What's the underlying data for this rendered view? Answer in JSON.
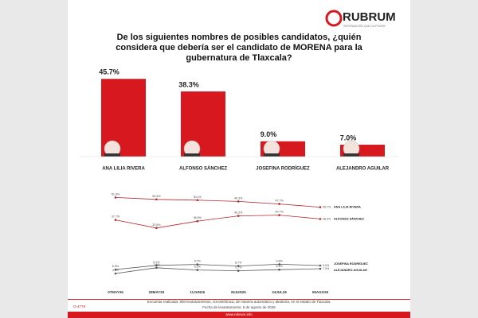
{
  "header": {
    "logo": "RUBRUM",
    "tagline": "INFORMACIÓN QUE DA PODER"
  },
  "chart_data": [
    {
      "type": "bar",
      "title": "De los siguientes nombres de posibles candidatos, ¿quién considera que debería ser el candidato de MORENA para la gubernatura de Tlaxcala?",
      "categories": [
        "ANA LILIA RIVERA",
        "ALFONSO SÁNCHEZ",
        "JOSEFINA RODRÍGUEZ",
        "ALEJANDRO AGUILAR"
      ],
      "values": [
        45.7,
        38.3,
        9.0,
        7.0
      ],
      "value_labels": [
        "45.7%",
        "38.3%",
        "9.0%",
        "7.0%"
      ],
      "color": "#d7191f",
      "ylim": [
        0,
        50
      ]
    },
    {
      "type": "line",
      "x": [
        "07MAY26",
        "28MAY26",
        "11JUN26",
        "25JUN26",
        "24JUL26",
        "06AGO26"
      ],
      "ylim": [
        0,
        56
      ],
      "series": [
        {
          "name": "ANA LILIA RIVERA",
          "color": "#b3262c",
          "values": [
            51.8,
            50.6,
            50.1,
            49.3,
            47.7,
            45.7
          ],
          "value_labels": [
            "51.8%",
            "50.6%",
            "50.1%",
            "49.3%",
            "47.7%",
            "45.7%"
          ]
        },
        {
          "name": "ALFONSO SÁNCHEZ",
          "color": "#b3262c",
          "values": [
            37.7,
            32.6,
            36.9,
            40.2,
            40.7,
            38.3
          ],
          "value_labels": [
            "37.7%",
            "32.6%",
            "36.9%",
            "40.2%",
            "40.7%",
            "38.3%"
          ]
        },
        {
          "name": "JOSEFINA RODRÍGUEZ",
          "color": "#555555",
          "values": [
            6.5,
            9.1,
            9.7,
            8.7,
            9.8,
            9.0
          ],
          "value_labels": [
            "6.5%",
            "9.1%",
            "9.7%",
            "8.7%",
            "9.8%",
            "9.0%"
          ]
        },
        {
          "name": "ALEJANDRO AGUILAR",
          "color": "#555555",
          "values": [
            4.0,
            7.6,
            6.2,
            5.7,
            6.4,
            7.0
          ],
          "value_labels": [
            "4.0%",
            "7.6%",
            "6.2%",
            "5.7%",
            "6.4%",
            "7.0%"
          ]
        }
      ]
    }
  ],
  "footer": {
    "method": "Encuesta realizada: 800 levantamientos, vía telefónica, de manera automática y aleatoria, en el estado de Tlaxcala.",
    "date": "Fecha de levantamiento: 6 de agosto de 2026",
    "web": "www.rubrum.info",
    "code": "O-4779"
  }
}
